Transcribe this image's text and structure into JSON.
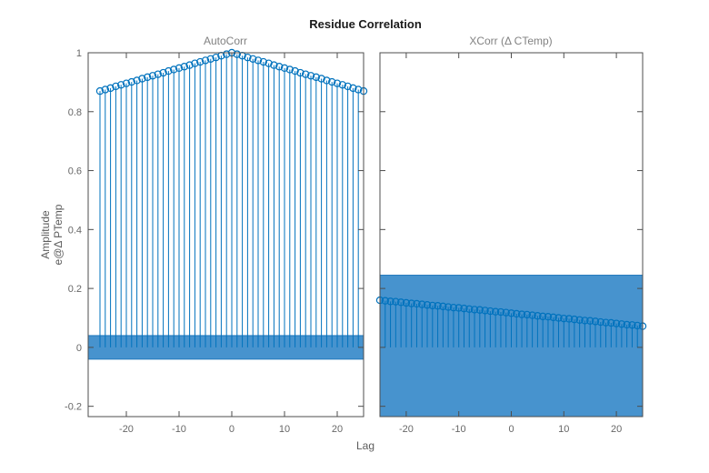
{
  "figure": {
    "title": "Residue Correlation",
    "xlabel": "Lag",
    "ylabel_line1": "Amplitude",
    "ylabel_line2": "e@Δ PTemp"
  },
  "colors": {
    "stem": "#0072BD",
    "band_fill": "#4793CE",
    "band_edge": "#2278BD",
    "axis": "#4d4d4d",
    "tick_label": "#676767"
  },
  "chart_data": [
    {
      "type": "stem",
      "title": "AutoCorr",
      "xlim": [
        -27.24,
        25
      ],
      "ylim": [
        -0.235,
        1.0
      ],
      "xtick_values": [
        -20,
        -10,
        0,
        10,
        20
      ],
      "xtick_labels": [
        "-20",
        "-10",
        "0",
        "10",
        "20"
      ],
      "ytick_values": [
        -0.2,
        0,
        0.2,
        0.4,
        0.6,
        0.8,
        1
      ],
      "ytick_labels": [
        "-0.2",
        "0",
        "0.2",
        "0.4",
        "0.6",
        "0.8",
        "1"
      ],
      "show_ytick_labels": true,
      "confidence_band": [
        -0.04,
        0.04
      ],
      "x": [
        -25,
        -24,
        -23,
        -22,
        -21,
        -20,
        -19,
        -18,
        -17,
        -16,
        -15,
        -14,
        -13,
        -12,
        -11,
        -10,
        -9,
        -8,
        -7,
        -6,
        -5,
        -4,
        -3,
        -2,
        -1,
        0,
        1,
        2,
        3,
        4,
        5,
        6,
        7,
        8,
        9,
        10,
        11,
        12,
        13,
        14,
        15,
        16,
        17,
        18,
        19,
        20,
        21,
        22,
        23,
        24,
        25
      ],
      "values": [
        0.87,
        0.875,
        0.88,
        0.886,
        0.891,
        0.896,
        0.901,
        0.906,
        0.912,
        0.917,
        0.922,
        0.927,
        0.932,
        0.938,
        0.943,
        0.948,
        0.953,
        0.958,
        0.964,
        0.969,
        0.974,
        0.979,
        0.984,
        0.99,
        0.995,
        1.0,
        0.995,
        0.99,
        0.984,
        0.979,
        0.974,
        0.969,
        0.964,
        0.958,
        0.953,
        0.948,
        0.943,
        0.938,
        0.932,
        0.927,
        0.922,
        0.917,
        0.912,
        0.906,
        0.901,
        0.896,
        0.891,
        0.886,
        0.88,
        0.875,
        0.87
      ]
    },
    {
      "type": "stem",
      "title": "XCorr  (Δ  CTemp)",
      "xlim": [
        -25,
        25
      ],
      "ylim": [
        -0.235,
        1.0
      ],
      "xtick_values": [
        -20,
        -10,
        0,
        10,
        20
      ],
      "xtick_labels": [
        "-20",
        "-10",
        "0",
        "10",
        "20"
      ],
      "ytick_values": [
        -0.2,
        0,
        0.2,
        0.4,
        0.6,
        0.8,
        1
      ],
      "ytick_labels": [],
      "show_ytick_labels": false,
      "confidence_band": [
        -0.245,
        0.245
      ],
      "x": [
        -25,
        -24,
        -23,
        -22,
        -21,
        -20,
        -19,
        -18,
        -17,
        -16,
        -15,
        -14,
        -13,
        -12,
        -11,
        -10,
        -9,
        -8,
        -7,
        -6,
        -5,
        -4,
        -3,
        -2,
        -1,
        0,
        1,
        2,
        3,
        4,
        5,
        6,
        7,
        8,
        9,
        10,
        11,
        12,
        13,
        14,
        15,
        16,
        17,
        18,
        19,
        20,
        21,
        22,
        23,
        24,
        25
      ],
      "values": [
        0.16,
        0.158,
        0.156,
        0.155,
        0.153,
        0.151,
        0.149,
        0.148,
        0.146,
        0.144,
        0.142,
        0.141,
        0.139,
        0.137,
        0.135,
        0.134,
        0.132,
        0.13,
        0.128,
        0.127,
        0.125,
        0.123,
        0.121,
        0.12,
        0.118,
        0.116,
        0.114,
        0.112,
        0.111,
        0.109,
        0.107,
        0.105,
        0.104,
        0.102,
        0.1,
        0.098,
        0.097,
        0.095,
        0.093,
        0.091,
        0.09,
        0.088,
        0.086,
        0.084,
        0.083,
        0.081,
        0.079,
        0.077,
        0.076,
        0.074,
        0.072
      ]
    }
  ]
}
